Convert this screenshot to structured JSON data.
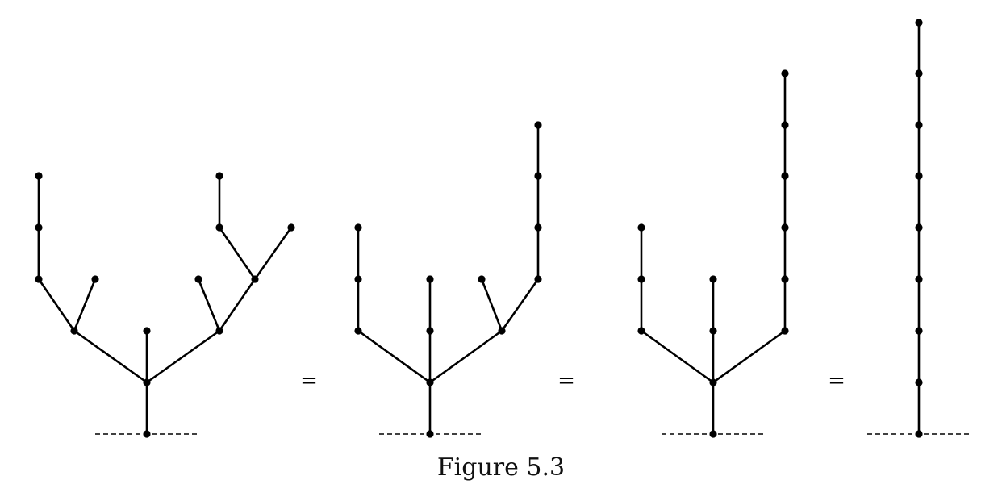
{
  "caption": "Figure 5.3",
  "equals_sign": "=",
  "colors": {
    "ink": "#000000",
    "background": "#ffffff"
  },
  "trees": [
    {
      "name": "tree-1",
      "description_levels": "rooted tree with 4 branches",
      "edges": [
        [
          "r",
          "a"
        ],
        [
          "a",
          "b"
        ],
        [
          "b",
          "c"
        ],
        [
          "b",
          "d"
        ],
        [
          "b",
          "e"
        ],
        [
          "d",
          "f"
        ],
        [
          "d",
          "g"
        ],
        [
          "f",
          "h"
        ],
        [
          "f",
          "i"
        ],
        [
          "i",
          "j"
        ],
        [
          "e",
          "k"
        ],
        [
          "e",
          "l"
        ],
        [
          "l",
          "m"
        ],
        [
          "l",
          "n"
        ],
        [
          "m",
          "o"
        ]
      ]
    },
    {
      "name": "tree-2",
      "edges": [
        [
          "r",
          "b"
        ],
        [
          "b",
          "c"
        ],
        [
          "b",
          "d"
        ],
        [
          "b",
          "e"
        ],
        [
          "d",
          "f"
        ],
        [
          "f",
          "g"
        ],
        [
          "c",
          "h"
        ],
        [
          "e",
          "i"
        ],
        [
          "e",
          "j"
        ],
        [
          "j",
          "k"
        ],
        [
          "k",
          "l"
        ],
        [
          "l",
          "m"
        ]
      ]
    },
    {
      "name": "tree-3",
      "edges": [
        [
          "r",
          "b"
        ],
        [
          "b",
          "c"
        ],
        [
          "b",
          "d"
        ],
        [
          "b",
          "e"
        ],
        [
          "c",
          "f"
        ],
        [
          "f",
          "g"
        ],
        [
          "d",
          "h"
        ],
        [
          "e",
          "i"
        ],
        [
          "i",
          "j"
        ],
        [
          "j",
          "k"
        ],
        [
          "k",
          "l"
        ],
        [
          "l",
          "m"
        ],
        [
          "m",
          "n"
        ]
      ]
    },
    {
      "name": "tree-4",
      "edges": [
        [
          "r",
          "a"
        ],
        [
          "a",
          "b"
        ],
        [
          "b",
          "c"
        ],
        [
          "c",
          "d"
        ],
        [
          "d",
          "e"
        ],
        [
          "e",
          "f"
        ],
        [
          "f",
          "g"
        ],
        [
          "g",
          "h"
        ]
      ]
    }
  ]
}
